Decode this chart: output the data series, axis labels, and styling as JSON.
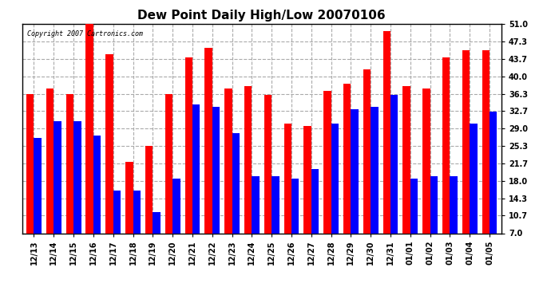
{
  "title": "Dew Point Daily High/Low 20070106",
  "copyright": "Copyright 2007 Cartronics.com",
  "categories": [
    "12/13",
    "12/14",
    "12/15",
    "12/16",
    "12/17",
    "12/18",
    "12/19",
    "12/20",
    "12/21",
    "12/22",
    "12/23",
    "12/24",
    "12/25",
    "12/26",
    "12/27",
    "12/28",
    "12/29",
    "12/30",
    "12/31",
    "01/01",
    "01/02",
    "01/03",
    "01/04",
    "01/05"
  ],
  "high_values": [
    36.3,
    37.5,
    36.3,
    51.0,
    44.7,
    22.0,
    25.3,
    36.3,
    44.0,
    46.0,
    37.5,
    38.0,
    36.0,
    30.0,
    29.5,
    37.0,
    38.5,
    41.5,
    49.5,
    38.0,
    37.5,
    44.0,
    45.5,
    45.5
  ],
  "low_values": [
    27.0,
    30.5,
    30.5,
    27.5,
    16.0,
    16.0,
    11.5,
    18.5,
    34.0,
    33.5,
    28.0,
    19.0,
    19.0,
    18.5,
    20.5,
    30.0,
    33.0,
    33.5,
    36.0,
    18.5,
    19.0,
    19.0,
    30.0,
    32.5
  ],
  "bar_color_high": "#ff0000",
  "bar_color_low": "#0000ff",
  "ylim": [
    7.0,
    51.0
  ],
  "yticks": [
    7.0,
    10.7,
    14.3,
    18.0,
    21.7,
    25.3,
    29.0,
    32.7,
    36.3,
    40.0,
    43.7,
    47.3,
    51.0
  ],
  "background_color": "#ffffff",
  "plot_bg_color": "#ffffff",
  "grid_color": "#aaaaaa",
  "title_fontsize": 11,
  "tick_fontsize": 7,
  "bar_width": 0.38,
  "fig_width": 6.9,
  "fig_height": 3.75,
  "dpi": 100
}
